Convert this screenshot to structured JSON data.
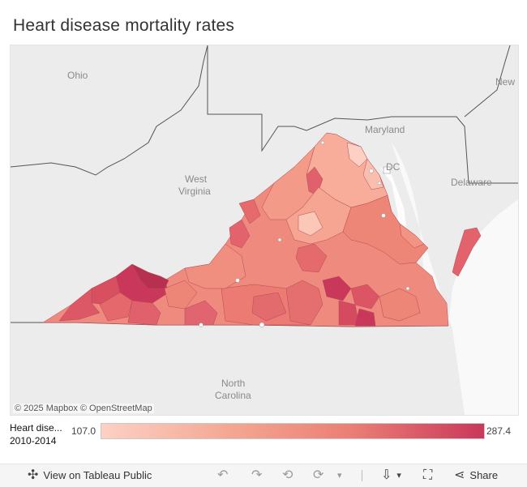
{
  "title": "Heart disease mortality rates",
  "map": {
    "labels": {
      "ohio": "Ohio",
      "new": "New",
      "maryland": "Maryland",
      "dc": "DC",
      "west_virginia_1": "West",
      "west_virginia_2": "Virginia",
      "delaware": "Delaware",
      "north_carolina_1": "North",
      "north_carolina_2": "Carolina"
    },
    "attribution": "© 2025 Mapbox  © OpenStreetMap",
    "colors": {
      "low": "#fcd1c4",
      "mid": "#eb7f75",
      "high": "#c9385a",
      "background": "#ececec"
    }
  },
  "legend": {
    "title_line1": "Heart dise...",
    "title_line2": "2010-2014",
    "min": "107.0",
    "max": "287.4"
  },
  "toolbar": {
    "view_label": "View on Tableau Public",
    "share_label": "Share"
  }
}
